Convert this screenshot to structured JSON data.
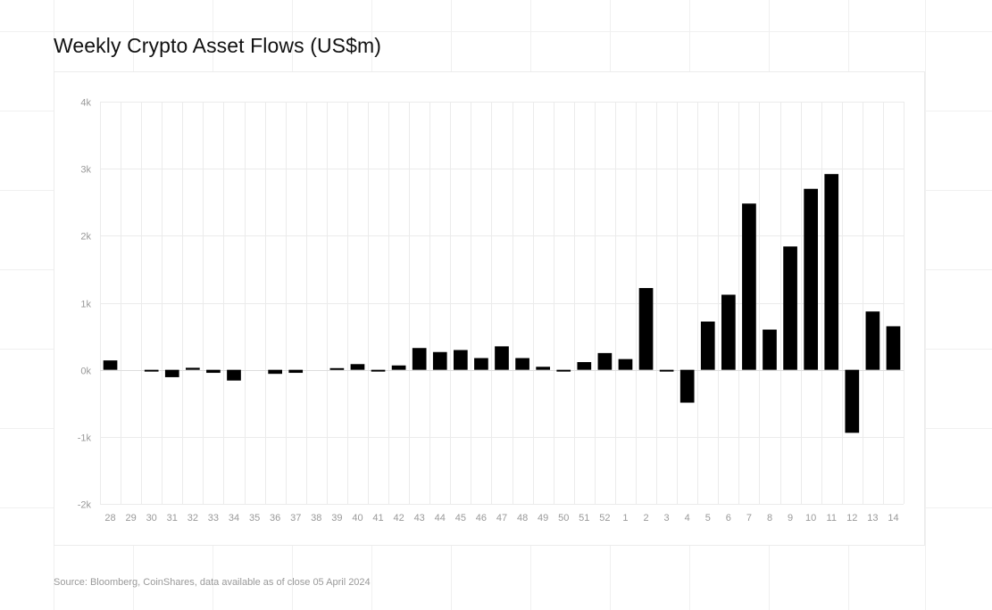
{
  "title": "Weekly Crypto Asset Flows (US$m)",
  "source": "Source: Bloomberg, CoinShares, data available as of close 05 April 2024",
  "colors": {
    "bar": "#000000",
    "grid": "#ebebeb",
    "tick_text": "#999999",
    "zero_line": "#dddddd"
  },
  "chart_data": {
    "type": "bar",
    "title": "Weekly Crypto Asset Flows (US$m)",
    "xlabel": "",
    "ylabel": "",
    "ylim": [
      -2000,
      4000
    ],
    "yticks": [
      -2000,
      -1000,
      0,
      1000,
      2000,
      3000,
      4000
    ],
    "ytick_labels": [
      "-2k",
      "-1k",
      "0k",
      "1k",
      "2k",
      "3k",
      "4k"
    ],
    "grid": true,
    "legend": "none",
    "categories": [
      "28",
      "29",
      "30",
      "31",
      "32",
      "33",
      "34",
      "35",
      "36",
      "37",
      "38",
      "39",
      "40",
      "41",
      "42",
      "43",
      "44",
      "45",
      "46",
      "47",
      "48",
      "49",
      "50",
      "51",
      "52",
      "1",
      "2",
      "3",
      "4",
      "5",
      "6",
      "7",
      "8",
      "9",
      "10",
      "11",
      "12",
      "13",
      "14"
    ],
    "values": [
      140,
      0,
      -15,
      -110,
      30,
      -45,
      -160,
      0,
      -60,
      -45,
      0,
      25,
      85,
      -15,
      65,
      325,
      265,
      295,
      175,
      350,
      175,
      45,
      -15,
      115,
      250,
      160,
      1220,
      -15,
      -490,
      720,
      1120,
      2480,
      600,
      1840,
      2700,
      2920,
      -940,
      870,
      650
    ]
  }
}
